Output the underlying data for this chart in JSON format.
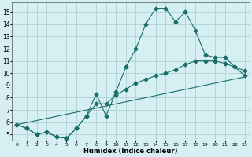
{
  "xlabel": "Humidex (Indice chaleur)",
  "xlim": [
    -0.5,
    23.5
  ],
  "ylim": [
    4.5,
    15.8
  ],
  "xticks": [
    0,
    1,
    2,
    3,
    4,
    5,
    6,
    7,
    8,
    9,
    10,
    11,
    12,
    13,
    14,
    15,
    16,
    17,
    18,
    19,
    20,
    21,
    22,
    23
  ],
  "yticks": [
    5,
    6,
    7,
    8,
    9,
    10,
    11,
    12,
    13,
    14,
    15
  ],
  "background_color": "#d6eff3",
  "grid_color": "#b0d0d4",
  "line_color": "#1a6e6a",
  "line1_x": [
    0,
    1,
    2,
    3,
    4,
    5,
    6,
    7,
    8,
    9,
    10,
    11,
    12,
    13,
    14,
    15,
    16,
    17,
    18,
    19,
    20,
    21,
    22,
    23
  ],
  "line1_y": [
    5.8,
    5.5,
    5.0,
    5.2,
    4.8,
    4.7,
    5.5,
    6.5,
    8.3,
    6.5,
    8.5,
    10.5,
    12.0,
    14.0,
    15.3,
    15.3,
    14.2,
    15.0,
    13.5,
    11.5,
    11.3,
    11.3,
    10.5,
    10.2
  ],
  "line2_x": [
    0,
    1,
    2,
    3,
    4,
    5,
    6,
    7,
    8,
    9,
    10,
    11,
    12,
    13,
    14,
    15,
    16,
    17,
    18,
    19,
    20,
    21,
    22,
    23
  ],
  "line2_y": [
    5.8,
    5.5,
    5.0,
    5.2,
    4.8,
    4.7,
    5.5,
    6.5,
    7.5,
    7.5,
    8.2,
    8.7,
    9.2,
    9.5,
    9.8,
    10.0,
    10.3,
    10.7,
    11.0,
    11.0,
    11.0,
    10.8,
    10.5,
    9.8
  ],
  "line3_x": [
    0,
    23
  ],
  "line3_y": [
    5.8,
    9.7
  ]
}
